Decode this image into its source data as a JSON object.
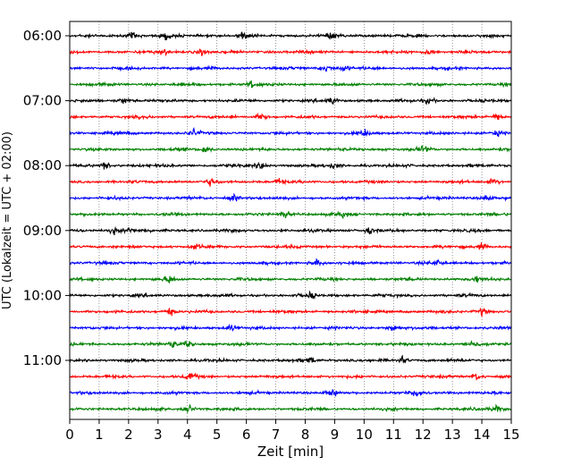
{
  "chart_data": {
    "type": "line",
    "xlabel": "Zeit  [min]",
    "ylabel": "UTC (Lokalzeit = UTC + 02:00)",
    "xlim": [
      0,
      15
    ],
    "x_ticks": [
      0,
      1,
      2,
      3,
      4,
      5,
      6,
      7,
      8,
      9,
      10,
      11,
      12,
      13,
      14,
      15
    ],
    "y_tick_labels": [
      "06:00",
      "07:00",
      "08:00",
      "09:00",
      "10:00",
      "11:00"
    ],
    "x_grid": "dotted vertical at each minute",
    "traces_per_hour": 4,
    "trace_interval_min": 15,
    "trace_colors": [
      "#000000",
      "#ff0000",
      "#0000ff",
      "#008000"
    ],
    "series": [
      {
        "start": "06:00",
        "color": "#000000",
        "events": [
          2.15,
          3.3,
          5.9,
          8.9
        ]
      },
      {
        "start": "06:15",
        "color": "#ff0000",
        "events": [
          3.2,
          4.5,
          12.2
        ]
      },
      {
        "start": "06:30",
        "color": "#0000ff",
        "events": [
          8.7,
          9.3
        ]
      },
      {
        "start": "06:45",
        "color": "#008000",
        "events": [
          6.2
        ]
      },
      {
        "start": "07:00",
        "color": "#000000",
        "events": [
          1.85,
          8.9,
          12.2
        ]
      },
      {
        "start": "07:15",
        "color": "#ff0000",
        "events": [
          6.5,
          14.5
        ]
      },
      {
        "start": "07:30",
        "color": "#0000ff",
        "events": [
          4.2,
          10.0,
          14.5
        ]
      },
      {
        "start": "07:45",
        "color": "#008000",
        "events": [
          4.6,
          12.0
        ]
      },
      {
        "start": "08:00",
        "color": "#000000",
        "events": [
          1.2,
          6.5,
          9.0
        ]
      },
      {
        "start": "08:15",
        "color": "#ff0000",
        "events": [
          4.8,
          7.1,
          14.4
        ]
      },
      {
        "start": "08:30",
        "color": "#0000ff",
        "events": [
          5.6,
          14.2
        ]
      },
      {
        "start": "08:45",
        "color": "#008000",
        "events": [
          7.3,
          9.3
        ]
      },
      {
        "start": "09:00",
        "color": "#000000",
        "events": [
          1.5,
          2.0,
          10.2
        ]
      },
      {
        "start": "09:15",
        "color": "#ff0000",
        "events": [
          4.3,
          14.0
        ]
      },
      {
        "start": "09:30",
        "color": "#0000ff",
        "events": [
          8.4,
          12.5
        ]
      },
      {
        "start": "09:45",
        "color": "#008000",
        "events": [
          3.4,
          13.8
        ]
      },
      {
        "start": "10:00",
        "color": "#000000",
        "events": [
          8.2
        ]
      },
      {
        "start": "10:15",
        "color": "#ff0000",
        "events": [
          3.4,
          14.0
        ]
      },
      {
        "start": "10:30",
        "color": "#0000ff",
        "events": [
          5.5,
          11.0
        ]
      },
      {
        "start": "10:45",
        "color": "#008000",
        "events": [
          3.5,
          4.0,
          13.7
        ]
      },
      {
        "start": "11:00",
        "color": "#000000",
        "events": [
          8.2,
          11.3
        ]
      },
      {
        "start": "11:15",
        "color": "#ff0000",
        "events": [
          4.1,
          13.8
        ]
      },
      {
        "start": "11:30",
        "color": "#0000ff",
        "events": [
          8.9,
          11.8
        ]
      },
      {
        "start": "11:45",
        "color": "#008000",
        "events": [
          4.1,
          14.5
        ]
      }
    ]
  }
}
